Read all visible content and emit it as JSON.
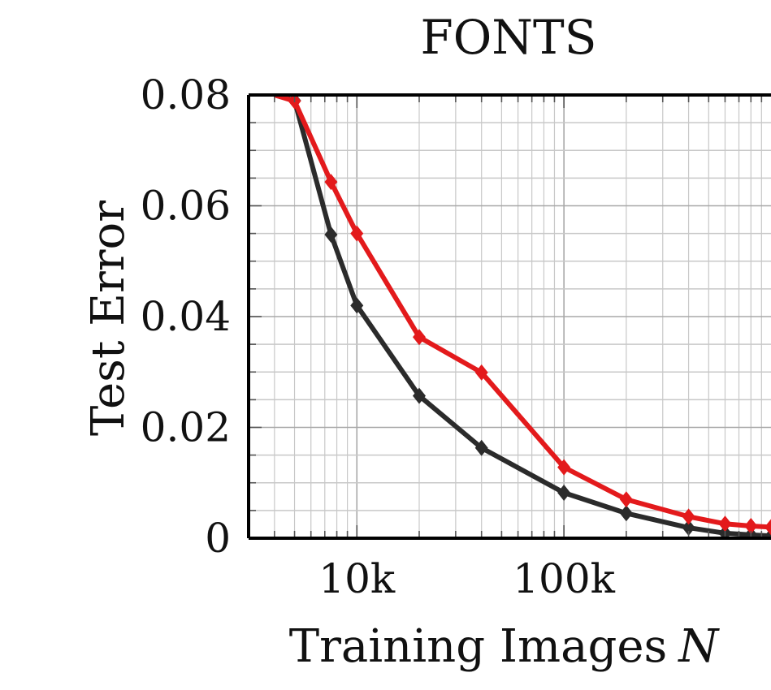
{
  "chart_data": {
    "type": "line",
    "title": "FONTS",
    "xlabel": "Training Images",
    "xlabel_var": "N",
    "ylabel": "Test Error",
    "x_scale": "log",
    "xlim": [
      3000,
      1000000
    ],
    "ylim": [
      0,
      0.08
    ],
    "x_ticks": [
      {
        "value": 10000,
        "label": "10k"
      },
      {
        "value": 100000,
        "label": "100k"
      }
    ],
    "y_ticks": [
      {
        "value": 0,
        "label": "0"
      },
      {
        "value": 0.02,
        "label": "0.02"
      },
      {
        "value": 0.04,
        "label": "0.04"
      },
      {
        "value": 0.06,
        "label": "0.06"
      },
      {
        "value": 0.08,
        "label": "0.08"
      }
    ],
    "grid": true,
    "legend": "none",
    "series": [
      {
        "color": "#e31a1c",
        "marker": "diamond",
        "points": [
          [
            4000,
            0.08
          ],
          [
            5000,
            0.0789
          ],
          [
            7500,
            0.0643
          ],
          [
            10000,
            0.055
          ],
          [
            20000,
            0.0363
          ],
          [
            40000,
            0.0299
          ],
          [
            100000,
            0.0128
          ],
          [
            200000,
            0.007
          ],
          [
            400000,
            0.0039
          ],
          [
            600000,
            0.0026
          ],
          [
            800000,
            0.0022
          ],
          [
            1000000,
            0.002
          ]
        ]
      },
      {
        "color": "#2b2b2b",
        "marker": "diamond",
        "points": [
          [
            4000,
            0.08
          ],
          [
            5000,
            0.079
          ],
          [
            7500,
            0.0548
          ],
          [
            10000,
            0.042
          ],
          [
            20000,
            0.0257
          ],
          [
            40000,
            0.0163
          ],
          [
            100000,
            0.0082
          ],
          [
            200000,
            0.0045
          ],
          [
            400000,
            0.0019
          ],
          [
            600000,
            0.0009
          ],
          [
            800000,
            0.0006
          ],
          [
            1000000,
            0.0004
          ]
        ]
      }
    ]
  }
}
